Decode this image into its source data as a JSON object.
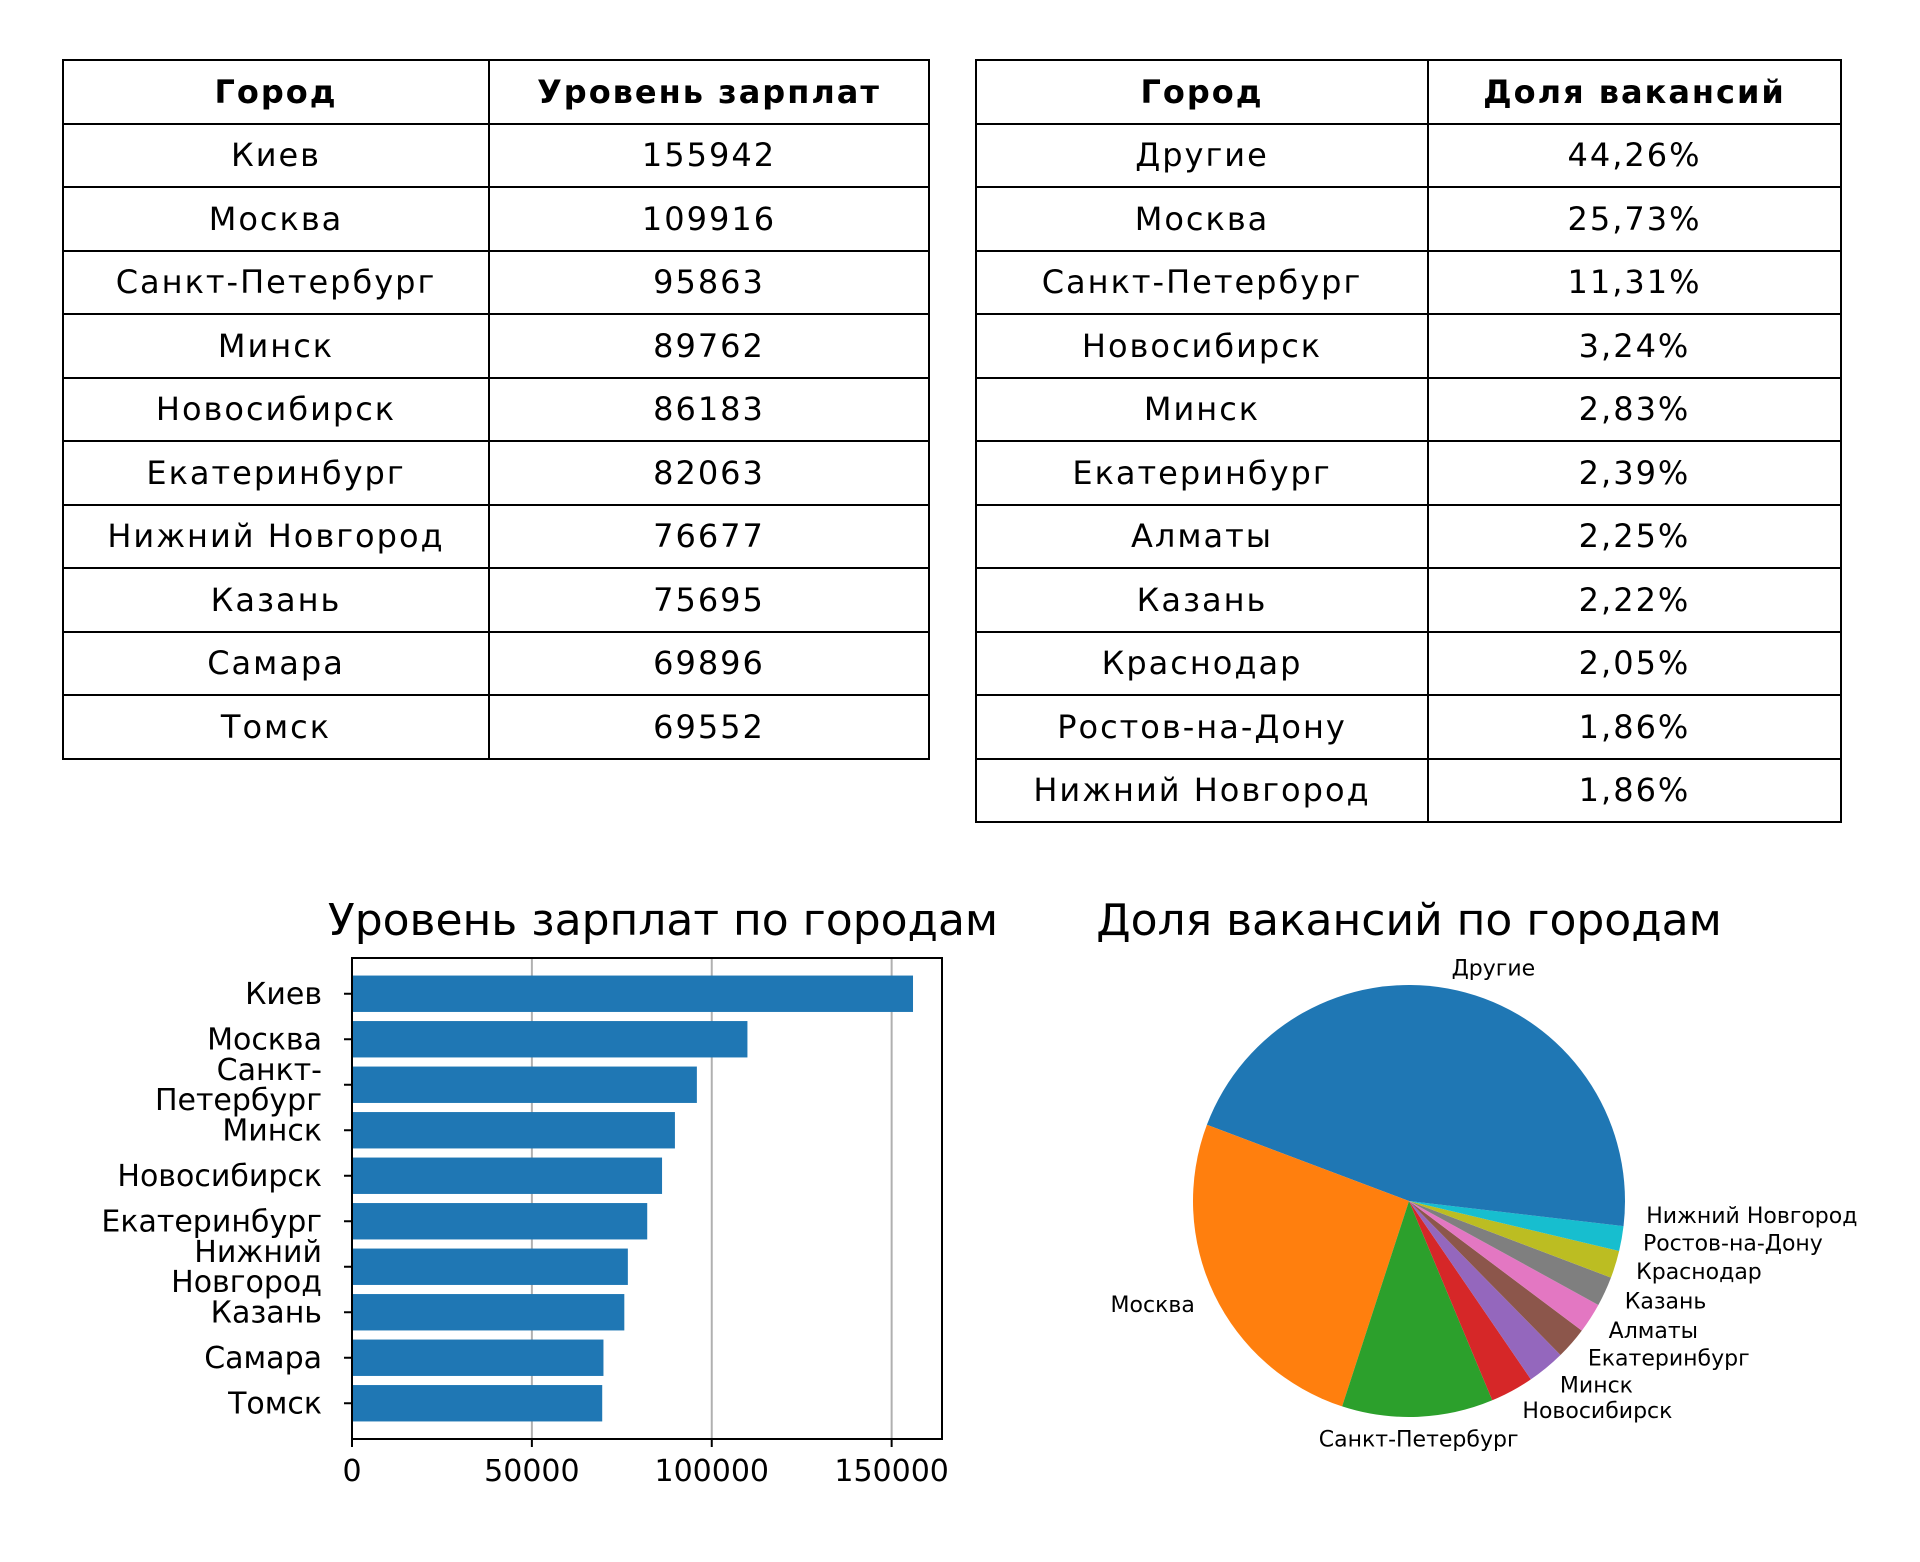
{
  "salary_table": {
    "headers": [
      "Город",
      "Уровень зарплат"
    ],
    "rows": [
      [
        "Киев",
        "155942"
      ],
      [
        "Москва",
        "109916"
      ],
      [
        "Санкт-Петербург",
        "95863"
      ],
      [
        "Минск",
        "89762"
      ],
      [
        "Новосибирск",
        "86183"
      ],
      [
        "Екатеринбург",
        "82063"
      ],
      [
        "Нижний Новгород",
        "76677"
      ],
      [
        "Казань",
        "75695"
      ],
      [
        "Самара",
        "69896"
      ],
      [
        "Томск",
        "69552"
      ]
    ]
  },
  "share_table": {
    "headers": [
      "Город",
      "Доля вакансий"
    ],
    "rows": [
      [
        "Другие",
        "44,26%"
      ],
      [
        "Москва",
        "25,73%"
      ],
      [
        "Санкт-Петербург",
        "11,31%"
      ],
      [
        "Новосибирск",
        "3,24%"
      ],
      [
        "Минск",
        "2,83%"
      ],
      [
        "Екатеринбург",
        "2,39%"
      ],
      [
        "Алматы",
        "2,25%"
      ],
      [
        "Казань",
        "2,22%"
      ],
      [
        "Краснодар",
        "2,05%"
      ],
      [
        "Ростов-на-Дону",
        "1,86%"
      ],
      [
        "Нижний Новгород",
        "1,86%"
      ]
    ]
  },
  "chart_data": [
    {
      "type": "bar",
      "orientation": "horizontal",
      "title": "Уровень зарплат по городам",
      "categories": [
        "Киев",
        "Москва",
        "Санкт-\nПетербург",
        "Минск",
        "Новосибирск",
        "Екатеринбург",
        "Нижний\nНовгород",
        "Казань",
        "Самара",
        "Томск"
      ],
      "values": [
        155942,
        109916,
        95863,
        89762,
        86183,
        82063,
        76677,
        75695,
        69896,
        69552
      ],
      "xticks": [
        0,
        50000,
        100000,
        150000
      ],
      "xlim": [
        0,
        164000
      ],
      "grid": "x",
      "color": "#1f77b4"
    },
    {
      "type": "pie",
      "title": "Доля вакансий по городам",
      "labels": [
        "Другие",
        "Москва",
        "Санкт-Петербург",
        "Новосибирск",
        "Минск",
        "Екатеринбург",
        "Алматы",
        "Казань",
        "Краснодар",
        "Ростов-на-Дону",
        "Нижний Новгород"
      ],
      "values": [
        44.26,
        25.73,
        11.31,
        3.24,
        2.83,
        2.39,
        2.25,
        2.22,
        2.05,
        1.86,
        1.86
      ],
      "colors": [
        "#1f77b4",
        "#ff7f0e",
        "#2ca02c",
        "#d62728",
        "#9467bd",
        "#8c564b",
        "#e377c2",
        "#7f7f7f",
        "#bcbd22",
        "#17becf",
        "#1f77b4"
      ]
    }
  ]
}
